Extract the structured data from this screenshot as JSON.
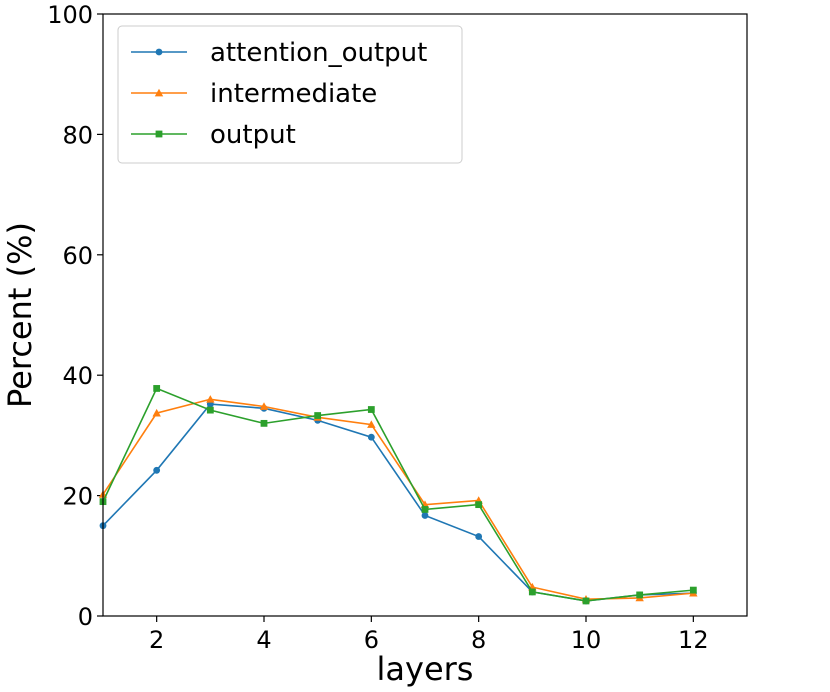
{
  "chart_data": {
    "type": "line",
    "title": "",
    "xlabel": "layers",
    "ylabel": "Percent (%)",
    "xlim": [
      1,
      13
    ],
    "ylim": [
      0,
      100
    ],
    "xticks": [
      2,
      4,
      6,
      8,
      10,
      12
    ],
    "yticks": [
      0,
      20,
      40,
      60,
      80,
      100
    ],
    "grid": false,
    "legend_position": "top-left",
    "x": [
      1,
      2,
      3,
      4,
      5,
      6,
      7,
      8,
      9,
      10,
      11,
      12
    ],
    "series": [
      {
        "name": "attention_output",
        "color": "#1f77b4",
        "marker": "circle",
        "values": [
          15.0,
          24.2,
          35.2,
          34.5,
          32.5,
          29.7,
          16.7,
          13.2,
          4.0,
          2.5,
          3.5,
          3.8
        ]
      },
      {
        "name": "intermediate",
        "color": "#ff7f0e",
        "marker": "triangle",
        "values": [
          20.2,
          33.7,
          36.0,
          34.8,
          33.0,
          31.8,
          18.5,
          19.2,
          4.8,
          2.8,
          3.0,
          3.8
        ]
      },
      {
        "name": "output",
        "color": "#2ca02c",
        "marker": "square",
        "values": [
          19.0,
          37.8,
          34.2,
          32.0,
          33.3,
          34.3,
          17.7,
          18.5,
          4.0,
          2.5,
          3.5,
          4.3
        ]
      }
    ]
  }
}
